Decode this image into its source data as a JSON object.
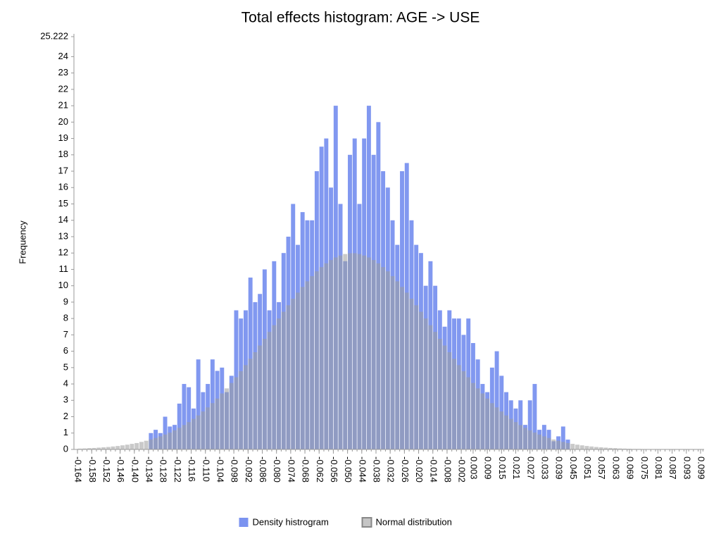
{
  "chart_data": {
    "type": "histogram",
    "title": "Total effects histogram: AGE -> USE",
    "y_label": "Frequency",
    "bins": [
      -0.164,
      -0.162,
      -0.16,
      -0.158,
      -0.156,
      -0.154,
      -0.152,
      -0.15,
      -0.148,
      -0.146,
      -0.144,
      -0.142,
      -0.14,
      -0.138,
      -0.136,
      -0.134,
      -0.132,
      -0.13,
      -0.128,
      -0.126,
      -0.124,
      -0.122,
      -0.12,
      -0.118,
      -0.116,
      -0.114,
      -0.112,
      -0.11,
      -0.108,
      -0.106,
      -0.104,
      -0.102,
      -0.1,
      -0.098,
      -0.096,
      -0.094,
      -0.092,
      -0.09,
      -0.088,
      -0.086,
      -0.084,
      -0.082,
      -0.08,
      -0.078,
      -0.076,
      -0.074,
      -0.072,
      -0.07,
      -0.068,
      -0.066,
      -0.064,
      -0.062,
      -0.06,
      -0.058,
      -0.056,
      -0.054,
      -0.052,
      -0.05,
      -0.048,
      -0.046,
      -0.044,
      -0.042,
      -0.04,
      -0.038,
      -0.036,
      -0.034,
      -0.032,
      -0.03,
      -0.028,
      -0.026,
      -0.024,
      -0.022,
      -0.02,
      -0.018,
      -0.016,
      -0.014,
      -0.012,
      -0.01,
      -0.008,
      -0.006,
      -0.004,
      -0.002,
      0,
      0.002,
      0.004,
      0.006,
      0.008,
      0.01,
      0.012,
      0.014,
      0.016,
      0.018,
      0.02,
      0.022,
      0.024,
      0.026,
      0.028,
      0.03,
      0.032,
      0.034,
      0.036,
      0.038,
      0.04,
      0.042,
      0.044,
      0.046,
      0.048,
      0.05,
      0.052,
      0.054,
      0.056,
      0.058,
      0.06,
      0.062,
      0.064,
      0.066,
      0.068,
      0.07,
      0.072,
      0.074,
      0.076,
      0.078,
      0.08,
      0.082,
      0.084,
      0.086,
      0.088,
      0.09,
      0.092,
      0.094,
      0.096,
      0.098,
      0.1
    ],
    "series": [
      {
        "name": "Density histrogram",
        "color": "#7b93f0",
        "values": [
          0,
          0,
          0,
          0,
          0,
          0,
          0,
          0,
          0,
          0,
          0,
          0,
          0,
          0,
          0,
          1,
          1.2,
          1,
          2,
          1.4,
          1.5,
          2.8,
          4,
          3.8,
          2.5,
          5.5,
          3.5,
          4,
          5.5,
          4.8,
          5,
          3.5,
          4.5,
          8.5,
          8,
          8.5,
          10.5,
          9,
          9.5,
          11,
          8.5,
          11.5,
          9,
          12,
          13,
          15,
          12.5,
          14.5,
          14,
          14,
          17,
          18.5,
          19,
          16,
          21,
          15,
          11.5,
          18,
          19,
          15,
          19,
          21,
          18,
          20,
          17,
          16,
          14,
          12.5,
          17,
          17.5,
          14,
          12.5,
          12,
          10,
          11.5,
          10,
          8.5,
          7.5,
          8.5,
          8,
          8,
          7,
          8,
          6.5,
          5.5,
          4,
          3.5,
          5,
          6,
          4.5,
          3.5,
          3,
          2.5,
          3,
          1.5,
          3,
          4,
          1.2,
          1.5,
          1.2,
          0.5,
          0.8,
          1.4,
          0.6,
          0,
          0,
          0,
          0,
          0,
          0,
          0,
          0,
          0,
          0,
          0,
          0,
          0,
          0,
          0,
          0,
          0,
          0,
          0,
          0,
          0,
          0,
          0,
          0,
          0,
          0,
          0,
          0
        ]
      },
      {
        "name": "Normal distribution",
        "color": "#9e9e9e",
        "values": [
          0.05,
          0.06,
          0.08,
          0.09,
          0.11,
          0.13,
          0.15,
          0.18,
          0.21,
          0.25,
          0.29,
          0.34,
          0.39,
          0.46,
          0.53,
          0.61,
          0.7,
          0.8,
          0.91,
          1.03,
          1.17,
          1.32,
          1.49,
          1.67,
          1.87,
          2.08,
          2.32,
          2.57,
          2.83,
          3.11,
          3.42,
          3.73,
          4.06,
          4.41,
          4.78,
          5.15,
          5.54,
          5.94,
          6.35,
          6.76,
          7.18,
          7.59,
          8,
          8.41,
          8.81,
          9.21,
          9.58,
          9.93,
          10.27,
          10.59,
          10.88,
          11.14,
          11.37,
          11.57,
          11.73,
          11.85,
          11.94,
          11.99,
          11.99,
          11.94,
          11.85,
          11.73,
          11.57,
          11.37,
          11.14,
          10.88,
          10.59,
          10.27,
          9.93,
          9.58,
          9.21,
          8.81,
          8.41,
          8,
          7.59,
          7.18,
          6.76,
          6.35,
          5.94,
          5.54,
          5.15,
          4.78,
          4.41,
          4.06,
          3.73,
          3.42,
          3.11,
          2.83,
          2.57,
          2.32,
          2.08,
          1.87,
          1.67,
          1.49,
          1.32,
          1.17,
          1.03,
          0.91,
          0.8,
          0.7,
          0.61,
          0.53,
          0.46,
          0.39,
          0.34,
          0.29,
          0.25,
          0.21,
          0.18,
          0.15,
          0.13,
          0.11,
          0.09,
          0.08,
          0.06,
          0.05,
          0.04,
          0.03,
          0.03,
          0.02,
          0.02,
          0.02,
          0.01,
          0.01,
          0.01,
          0.01,
          0.01,
          0.01,
          0.01,
          0.01,
          0.01,
          0.01
        ]
      }
    ],
    "xlim": [
      -0.1655,
      0.1005
    ],
    "xticks": [
      -0.164,
      -0.158,
      -0.152,
      -0.146,
      {
        "value": -0.14,
        "label": "-0.140"
      },
      -0.134,
      -0.128,
      -0.122,
      -0.116,
      {
        "value": -0.11,
        "label": "-0.110"
      },
      -0.104,
      -0.098,
      -0.092,
      -0.086,
      {
        "value": -0.08,
        "label": "-0.080"
      },
      -0.074,
      -0.068,
      -0.062,
      -0.056,
      {
        "value": -0.05,
        "label": "-0.050"
      },
      -0.044,
      -0.038,
      -0.032,
      -0.026,
      {
        "value": -0.02,
        "label": "-0.020"
      },
      -0.014,
      -0.008,
      -0.002,
      0.003,
      0.009,
      0.015,
      0.021,
      0.027,
      0.033,
      0.039,
      0.045,
      0.051,
      0.057,
      0.063,
      0.069,
      0.075,
      0.081,
      0.087,
      0.093,
      0.099
    ],
    "ylim": [
      0,
      25.222
    ],
    "yticks": [
      0,
      1,
      2,
      3,
      4,
      5,
      6,
      7,
      8,
      9,
      10,
      11,
      12,
      13,
      14,
      15,
      16,
      17,
      18,
      19,
      20,
      21,
      22,
      23,
      24,
      25.222
    ],
    "legend": "bottom"
  }
}
